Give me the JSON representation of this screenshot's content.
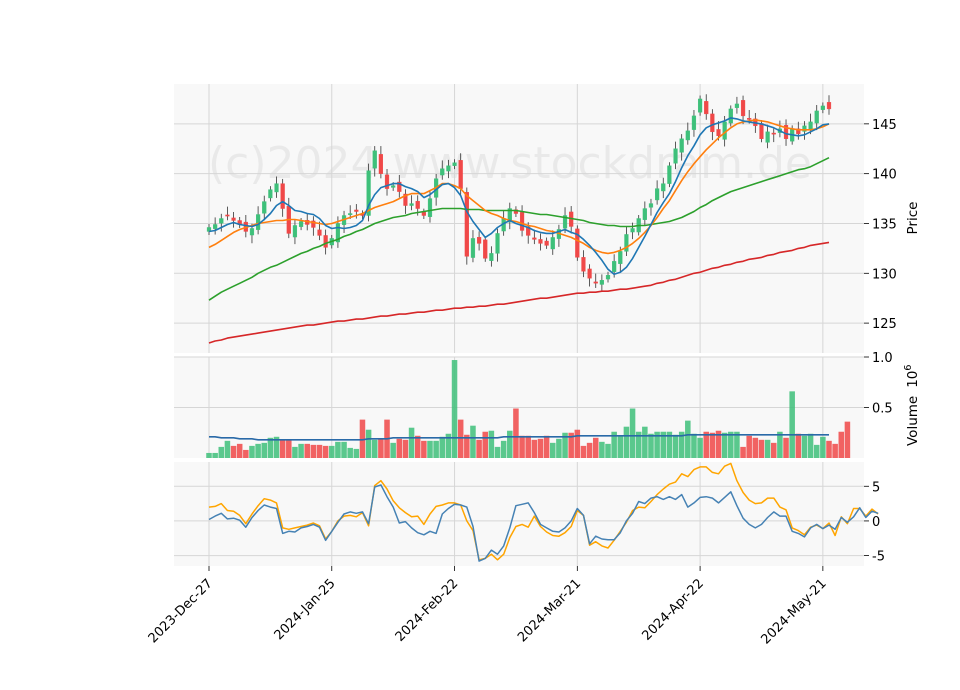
{
  "chart_data": {
    "type": "candlestick",
    "watermark": "(c)2024 www.stockdram.de",
    "x_tick_labels": [
      "2023-Dec-27",
      "2024-Jan-25",
      "2024-Feb-22",
      "2024-Mar-21",
      "2024-Apr-22",
      "2024-May-21"
    ],
    "price_panel": {
      "ylabel": "Price",
      "ylim": [
        122,
        149
      ],
      "yticks": [
        125,
        130,
        135,
        140,
        145
      ],
      "close": [
        134.6,
        134.9,
        135.5,
        135.8,
        135.3,
        134.9,
        134.2,
        134.5,
        135.9,
        137.2,
        138.4,
        139.0,
        136.5,
        134.0,
        134.8,
        135.2,
        134.9,
        134.6,
        133.8,
        132.6,
        133.5,
        135.0,
        135.8,
        136.0,
        136.2,
        135.8,
        140.3,
        142.3,
        140.0,
        138.5,
        138.8,
        138.2,
        136.8,
        137.0,
        136.5,
        135.8,
        137.5,
        139.5,
        140.5,
        140.8,
        141.1,
        138.5,
        131.7,
        133.5,
        133.0,
        131.5,
        132.0,
        134.0,
        135.5,
        136.5,
        136.0,
        134.3,
        133.8,
        133.4,
        133.0,
        132.8,
        133.6,
        134.4,
        135.8,
        134.7,
        131.6,
        130.2,
        129.5,
        129.0,
        129.3,
        129.8,
        131.2,
        132.2,
        133.9,
        134.5,
        135.5,
        136.5,
        137.0,
        138.5,
        139.0,
        140.8,
        142.5,
        143.5,
        144.3,
        145.8,
        147.5,
        146.0,
        144.2,
        143.8,
        145.2,
        146.5,
        147.0,
        145.8,
        145.5,
        144.8,
        143.5,
        144.2,
        144.0,
        144.5,
        143.5,
        144.5,
        144.0,
        144.8,
        145.2,
        146.3,
        146.8,
        146.5
      ],
      "ma_10": [
        134.2,
        134.3,
        134.6,
        134.9,
        135.1,
        134.9,
        134.8,
        134.7,
        134.9,
        135.4,
        136.0,
        136.8,
        137.2,
        136.8,
        136.3,
        136.2,
        136.0,
        135.9,
        135.5,
        134.8,
        134.5,
        134.6,
        134.5,
        134.6,
        134.8,
        135.3,
        136.8,
        137.9,
        138.6,
        138.8,
        139.0,
        139.0,
        138.7,
        138.5,
        138.2,
        137.6,
        137.9,
        138.4,
        138.9,
        139.0,
        138.6,
        137.8,
        136.2,
        135.2,
        134.4,
        133.6,
        134.0,
        134.6,
        135.0,
        135.3,
        135.0,
        134.8,
        134.6,
        134.3,
        134.1,
        134.0,
        134.0,
        134.2,
        134.4,
        134.1,
        133.9,
        133.4,
        132.8,
        132.1,
        131.3,
        130.4,
        129.9,
        130.1,
        130.6,
        131.5,
        132.6,
        133.7,
        134.9,
        136.1,
        137.1,
        138.0,
        139.2,
        140.6,
        141.8,
        142.8,
        143.9,
        144.6,
        144.9,
        145.1,
        145.3,
        145.6,
        145.5,
        145.3,
        145.2,
        145.1,
        145.0,
        144.8,
        144.6,
        144.3,
        144.0,
        143.9,
        143.8,
        143.9,
        144.2,
        144.5,
        144.9,
        145.0
      ],
      "ma_20": [
        132.6,
        132.9,
        133.3,
        133.7,
        134.1,
        134.4,
        134.6,
        134.8,
        135.0,
        135.1,
        135.2,
        135.3,
        135.3,
        135.4,
        135.4,
        135.3,
        135.2,
        135.1,
        135.0,
        134.9,
        135.0,
        135.2,
        135.4,
        135.6,
        135.8,
        136.0,
        136.3,
        136.6,
        136.8,
        137.0,
        137.2,
        137.5,
        137.8,
        138.0,
        138.0,
        138.0,
        138.3,
        138.6,
        139.0,
        139.0,
        138.8,
        138.5,
        137.8,
        137.3,
        136.8,
        136.3,
        136.0,
        135.8,
        135.5,
        135.3,
        135.2,
        135.0,
        134.8,
        134.7,
        134.5,
        134.3,
        134.2,
        134.0,
        133.8,
        133.6,
        133.3,
        133.0,
        132.6,
        132.3,
        132.1,
        132.0,
        132.1,
        132.3,
        132.6,
        133.0,
        133.5,
        134.1,
        134.8,
        135.6,
        136.5,
        137.3,
        138.3,
        139.3,
        140.2,
        141.0,
        141.7,
        142.4,
        143.0,
        143.6,
        144.1,
        144.6,
        145.0,
        145.2,
        145.3,
        145.4,
        145.3,
        145.2,
        145.0,
        144.8,
        144.6,
        144.5,
        144.4,
        144.4,
        144.4,
        144.5,
        144.7,
        145.0
      ],
      "ma_50": [
        127.3,
        127.7,
        128.1,
        128.4,
        128.7,
        129.0,
        129.3,
        129.6,
        130.0,
        130.3,
        130.6,
        130.8,
        131.1,
        131.4,
        131.7,
        132.0,
        132.2,
        132.5,
        132.7,
        133.0,
        133.2,
        133.4,
        133.7,
        133.9,
        134.2,
        134.4,
        134.7,
        135.0,
        135.2,
        135.4,
        135.6,
        135.7,
        135.8,
        136.0,
        136.1,
        136.2,
        136.3,
        136.4,
        136.5,
        136.5,
        136.5,
        136.5,
        136.4,
        136.4,
        136.4,
        136.3,
        136.3,
        136.3,
        136.3,
        136.3,
        136.3,
        136.2,
        136.1,
        136.0,
        135.9,
        135.9,
        135.8,
        135.7,
        135.6,
        135.5,
        135.4,
        135.3,
        135.1,
        135.0,
        134.9,
        134.8,
        134.8,
        134.7,
        134.7,
        134.7,
        134.8,
        134.8,
        134.9,
        135.0,
        135.1,
        135.2,
        135.4,
        135.6,
        135.9,
        136.2,
        136.6,
        136.9,
        137.3,
        137.6,
        137.9,
        138.2,
        138.4,
        138.6,
        138.8,
        139.0,
        139.2,
        139.4,
        139.6,
        139.8,
        140.0,
        140.2,
        140.4,
        140.5,
        140.7,
        141.0,
        141.3,
        141.6
      ],
      "ma_200": [
        123.0,
        123.2,
        123.3,
        123.5,
        123.6,
        123.7,
        123.8,
        123.9,
        124.0,
        124.1,
        124.2,
        124.3,
        124.4,
        124.5,
        124.6,
        124.7,
        124.8,
        124.8,
        124.9,
        125.0,
        125.1,
        125.2,
        125.2,
        125.3,
        125.4,
        125.4,
        125.5,
        125.6,
        125.7,
        125.7,
        125.8,
        125.9,
        125.9,
        126.0,
        126.1,
        126.1,
        126.2,
        126.3,
        126.3,
        126.4,
        126.5,
        126.5,
        126.6,
        126.6,
        126.7,
        126.7,
        126.8,
        126.9,
        126.9,
        127.0,
        127.1,
        127.2,
        127.3,
        127.4,
        127.5,
        127.5,
        127.6,
        127.7,
        127.8,
        127.9,
        128.0,
        128.0,
        128.1,
        128.1,
        128.2,
        128.2,
        128.3,
        128.4,
        128.4,
        128.5,
        128.6,
        128.7,
        128.8,
        129.0,
        129.1,
        129.3,
        129.4,
        129.6,
        129.8,
        130.0,
        130.1,
        130.3,
        130.5,
        130.6,
        130.8,
        130.9,
        131.1,
        131.2,
        131.4,
        131.5,
        131.6,
        131.8,
        131.9,
        132.1,
        132.2,
        132.3,
        132.5,
        132.6,
        132.8,
        132.9,
        133.0,
        133.1
      ]
    },
    "volume_panel": {
      "ylabel": "Volume  10^6",
      "ylabel_main": "Volume",
      "ylabel_exponent": "10",
      "ylabel_power": "6",
      "ylim": [
        0,
        1.0
      ],
      "yticks": [
        "0.5",
        "1.0"
      ],
      "volume": [
        0.05,
        0.05,
        0.11,
        0.17,
        0.12,
        0.14,
        0.08,
        0.12,
        0.14,
        0.15,
        0.2,
        0.21,
        0.18,
        0.18,
        0.11,
        0.14,
        0.14,
        0.13,
        0.13,
        0.12,
        0.12,
        0.16,
        0.16,
        0.1,
        0.09,
        0.38,
        0.28,
        0.18,
        0.19,
        0.38,
        0.15,
        0.19,
        0.18,
        0.3,
        0.22,
        0.17,
        0.17,
        0.17,
        0.21,
        0.24,
        0.97,
        0.38,
        0.23,
        0.32,
        0.18,
        0.26,
        0.27,
        0.11,
        0.17,
        0.27,
        0.49,
        0.22,
        0.22,
        0.18,
        0.19,
        0.22,
        0.15,
        0.19,
        0.25,
        0.25,
        0.28,
        0.12,
        0.15,
        0.2,
        0.16,
        0.14,
        0.26,
        0.22,
        0.31,
        0.49,
        0.26,
        0.31,
        0.24,
        0.26,
        0.26,
        0.26,
        0.23,
        0.26,
        0.37,
        0.24,
        0.2,
        0.26,
        0.25,
        0.27,
        0.25,
        0.26,
        0.26,
        0.11,
        0.22,
        0.2,
        0.18,
        0.18,
        0.15,
        0.26,
        0.2,
        0.66,
        0.24,
        0.22,
        0.24,
        0.13,
        0.21,
        0.17,
        0.14,
        0.26,
        0.36
      ],
      "volume_ma": [
        0.21,
        0.21,
        0.2,
        0.2,
        0.2,
        0.19,
        0.19,
        0.19,
        0.18,
        0.18,
        0.18,
        0.18,
        0.18,
        0.18,
        0.18,
        0.18,
        0.18,
        0.18,
        0.18,
        0.18,
        0.18,
        0.18,
        0.18,
        0.18,
        0.18,
        0.18,
        0.19,
        0.19,
        0.19,
        0.19,
        0.2,
        0.2,
        0.2,
        0.2,
        0.2,
        0.2,
        0.2,
        0.2,
        0.2,
        0.2,
        0.2,
        0.2,
        0.2,
        0.2,
        0.2,
        0.2,
        0.2,
        0.2,
        0.21,
        0.21,
        0.21,
        0.21,
        0.21,
        0.21,
        0.21,
        0.21,
        0.21,
        0.21,
        0.21,
        0.21,
        0.22,
        0.22,
        0.22,
        0.22,
        0.22,
        0.22,
        0.22,
        0.22,
        0.22,
        0.22,
        0.22,
        0.22,
        0.22,
        0.22,
        0.22,
        0.22,
        0.22,
        0.22,
        0.23,
        0.23,
        0.23,
        0.23,
        0.23,
        0.23,
        0.23,
        0.23,
        0.23,
        0.23,
        0.23,
        0.23,
        0.23,
        0.23,
        0.23,
        0.23,
        0.23,
        0.23,
        0.23,
        0.23,
        0.23,
        0.23,
        0.23,
        0.23
      ]
    },
    "oscillator_panel": {
      "ylim": [
        -6.5,
        8.5
      ],
      "yticks": [
        -5,
        0,
        5
      ],
      "blue": [
        0.2,
        0.7,
        1.1,
        0.3,
        0.4,
        0.1,
        -0.9,
        0.5,
        1.5,
        2.3,
        2.0,
        1.8,
        -1.8,
        -1.5,
        -1.6,
        -1.0,
        -0.8,
        -0.5,
        -0.9,
        -2.8,
        -1.5,
        -0.2,
        1.0,
        1.3,
        1.1,
        1.3,
        -0.4,
        4.9,
        5.2,
        3.5,
        2.0,
        -0.3,
        -0.1,
        -1.0,
        -1.7,
        -2.0,
        -1.5,
        -1.8,
        1.0,
        1.8,
        2.4,
        2.3,
        2.0,
        -0.8,
        -5.8,
        -5.4,
        -4.2,
        -4.8,
        -3.6,
        -1.0,
        2.2,
        2.4,
        2.6,
        1.2,
        -0.5,
        -1.0,
        -1.5,
        -1.6,
        -1.0,
        0.0,
        1.8,
        0.8,
        -3.3,
        -2.2,
        -2.6,
        -2.7,
        -2.7,
        -1.7,
        0.0,
        1.1,
        2.8,
        2.5,
        3.3,
        3.5,
        3.1,
        3.5,
        3.1,
        3.8,
        2.0,
        2.6,
        3.4,
        3.5,
        3.3,
        2.6,
        3.4,
        4.2,
        2.2,
        0.4,
        -0.5,
        -1.0,
        -0.5,
        0.5,
        1.3,
        0.7,
        0.7,
        -1.5,
        -1.8,
        -2.3,
        -1.0,
        -0.5,
        -1.1,
        -0.6,
        -1.2,
        0.5,
        -0.2,
        0.6,
        1.9,
        0.5,
        1.4,
        1.1
      ],
      "orange": [
        2.0,
        2.1,
        2.5,
        1.5,
        1.4,
        0.8,
        -0.4,
        1.0,
        2.2,
        3.2,
        3.0,
        2.6,
        -1.0,
        -1.2,
        -1.0,
        -0.8,
        -0.6,
        -0.3,
        -0.7,
        -2.6,
        -1.5,
        0.0,
        0.7,
        0.8,
        0.6,
        1.2,
        -0.7,
        5.1,
        5.8,
        4.6,
        2.9,
        1.9,
        1.2,
        0.6,
        0.7,
        -0.5,
        1.0,
        2.1,
        2.3,
        2.6,
        2.6,
        2.3,
        0.0,
        -1.4,
        -5.6,
        -5.4,
        -4.8,
        -5.6,
        -4.8,
        -2.4,
        -0.8,
        -0.5,
        -0.9,
        0.7,
        -0.8,
        -1.6,
        -2.1,
        -2.2,
        -1.7,
        -0.8,
        1.5,
        0.8,
        -3.5,
        -3.0,
        -3.6,
        -3.9,
        -2.8,
        -1.5,
        -0.2,
        1.5,
        2.0,
        1.9,
        2.8,
        3.8,
        4.6,
        5.3,
        5.6,
        6.8,
        6.4,
        7.4,
        7.8,
        7.8,
        7.0,
        6.8,
        7.9,
        8.3,
        5.8,
        4.1,
        3.0,
        2.5,
        2.6,
        3.3,
        3.3,
        2.0,
        1.6,
        -1.0,
        -1.4,
        -2.0,
        -0.9,
        -0.6,
        -1.1,
        -0.3,
        -2.1,
        0.6,
        -0.4,
        1.8,
        1.8,
        0.7,
        1.7,
        1.0
      ]
    },
    "colors": {
      "up": "#3ec07a",
      "down": "#f04848",
      "ma_10": "#1f77b4",
      "ma_20": "#ff7f0e",
      "ma_50": "#2ca02c",
      "ma_200": "#d62728",
      "volume_ma": "#2a6aa8",
      "osc_blue": "#4682b4",
      "osc_orange": "#ffa500",
      "plot_bg": "#f8f8f8",
      "grid": "#d6d6d6"
    }
  }
}
